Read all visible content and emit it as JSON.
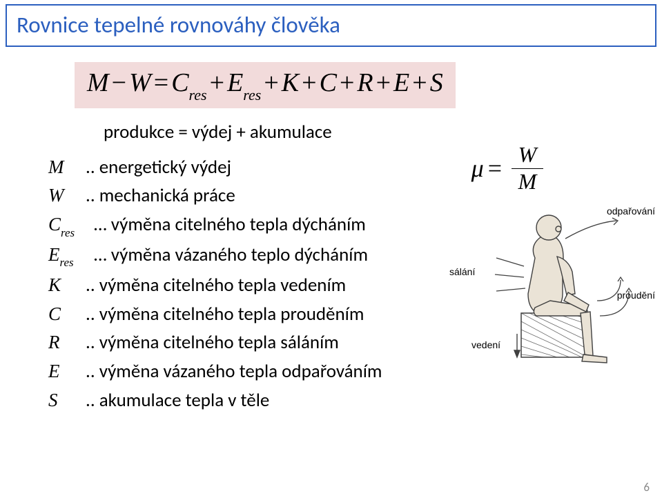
{
  "colors": {
    "border": "#2b5fbf",
    "title": "#2b5fbf",
    "eq_bg": "#f2dbdb",
    "text": "#000000",
    "pagenum": "#8a8a8a",
    "fig_stroke": "#404040",
    "fig_fill": "#eae3d6",
    "fig_hatch": "#6a6a6a"
  },
  "title": "Rovnice tepelné rovnováhy člověka",
  "equation": {
    "terms": [
      "M",
      "−",
      "W",
      "=",
      "C",
      "res",
      "+",
      "E",
      "res",
      "+",
      "K",
      "+",
      "C",
      "+",
      "R",
      "+",
      "E",
      "+",
      "S"
    ]
  },
  "subtitle": "produkce = výdej + akumulace",
  "mu": {
    "left": "μ",
    "eq": "=",
    "num": "W",
    "den": "M"
  },
  "definitions": [
    {
      "sym": "M",
      "sub": "",
      "dots": "..",
      "text": "energetický výdej"
    },
    {
      "sym": "W",
      "sub": "",
      "dots": "..",
      "text": "mechanická práce"
    },
    {
      "sym": "C",
      "sub": "res",
      "dots": "…",
      "text": "výměna citelného tepla dýcháním"
    },
    {
      "sym": "E",
      "sub": "res",
      "dots": "…",
      "text": "výměna vázaného teplo dýcháním"
    },
    {
      "sym": "K",
      "sub": "",
      "dots": "..",
      "text": "výměna citelného tepla vedením"
    },
    {
      "sym": "C",
      "sub": "",
      "dots": "..",
      "text": "výměna citelného tepla prouděním"
    },
    {
      "sym": "R",
      "sub": "",
      "dots": "..",
      "text": "výměna citelného tepla sáláním"
    },
    {
      "sym": "E",
      "sub": "",
      "dots": "..",
      "text": "výměna vázaného tepla odpařováním"
    },
    {
      "sym": "S",
      "sub": "",
      "dots": "..",
      "text": "akumulace tepla v těle"
    }
  ],
  "figure_labels": {
    "evap": "odpařování",
    "rad": "sálání",
    "conv": "proudění",
    "cond": "vedení"
  },
  "page": "6"
}
